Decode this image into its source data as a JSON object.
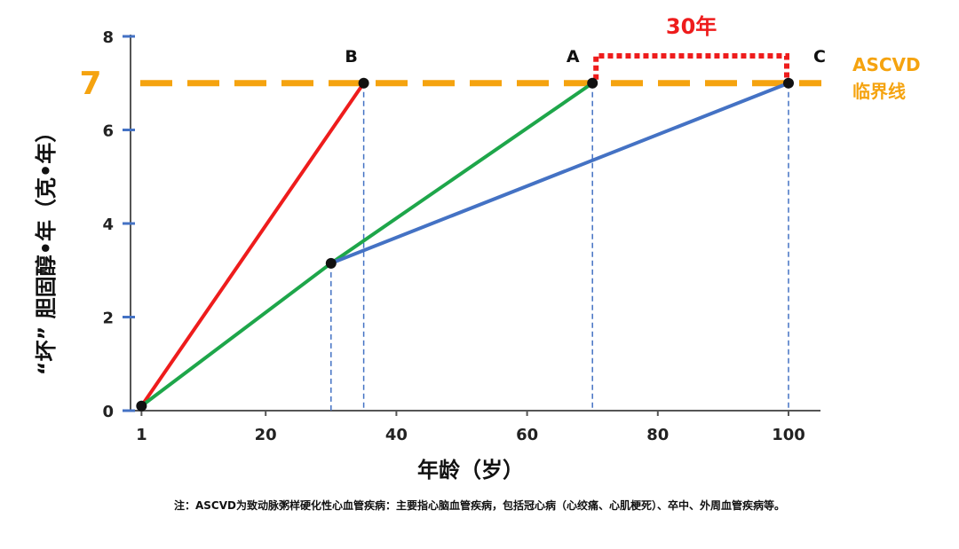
{
  "chart_data": {
    "type": "line",
    "xlabel": "年龄（岁）",
    "ylabel": "“坏” 胆固醇•年（克•年）",
    "xlim": [
      0,
      100
    ],
    "ylim": [
      0,
      8
    ],
    "x_ticks": [
      {
        "value": 1,
        "label": "1"
      },
      {
        "value": 20,
        "label": "20"
      },
      {
        "value": 40,
        "label": "40"
      },
      {
        "value": 60,
        "label": "60"
      },
      {
        "value": 80,
        "label": "80"
      },
      {
        "value": 100,
        "label": "100"
      }
    ],
    "y_ticks": [
      {
        "value": 0,
        "label": "0"
      },
      {
        "value": 2,
        "label": "2"
      },
      {
        "value": 4,
        "label": "4"
      },
      {
        "value": 6,
        "label": "6"
      },
      {
        "value": 8,
        "label": "8"
      }
    ],
    "series": [
      {
        "color": "#ee1c1c",
        "points": [
          [
            1,
            0.1
          ],
          [
            35,
            7
          ]
        ]
      },
      {
        "color": "#1ea64a",
        "points": [
          [
            1,
            0.1
          ],
          [
            30,
            3.15
          ],
          [
            70,
            7
          ]
        ]
      },
      {
        "color": "#4472c4",
        "points": [
          [
            30,
            3.15
          ],
          [
            100,
            7
          ]
        ]
      }
    ],
    "dots": [
      [
        1,
        0.1
      ],
      [
        30,
        3.15
      ],
      [
        35,
        7
      ],
      [
        70,
        7
      ],
      [
        100,
        7
      ]
    ],
    "point_labels": [
      {
        "text": "B",
        "x": 35,
        "y": 7
      },
      {
        "text": "A",
        "x": 70,
        "y": 7
      },
      {
        "text": "C",
        "x": 100,
        "y": 7
      }
    ],
    "threshold": {
      "value": 7,
      "value_label": "7",
      "label_line1": "ASCVD",
      "label_line2": "临界线",
      "color": "#f5a30f"
    },
    "bracket": {
      "from": 70,
      "to": 100,
      "label": "30年",
      "color": "#ee1c1c"
    },
    "dashed_drops": [
      30,
      35,
      70,
      100
    ]
  },
  "footnote": "注：ASCVD为致动脉粥样硬化性心血管疾病：主要指心脑血管疾病，包括冠心病（心绞痛、心肌梗死）、卒中、外周血管疾病等。"
}
